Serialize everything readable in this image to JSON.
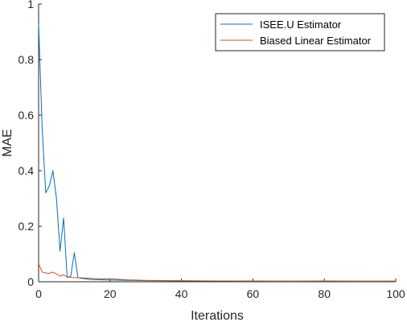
{
  "chart_data": {
    "type": "line",
    "title": "",
    "xlabel": "Iterations",
    "ylabel": "MAE",
    "xlim": [
      0,
      100
    ],
    "ylim": [
      0,
      1
    ],
    "xticks": [
      0,
      20,
      40,
      60,
      80,
      100
    ],
    "yticks": [
      0,
      0.2,
      0.4,
      0.6,
      0.8,
      1
    ],
    "xtick_labels": [
      "0",
      "20",
      "40",
      "60",
      "80",
      "100"
    ],
    "ytick_labels": [
      "0",
      "0.2",
      "0.4",
      "0.6",
      "0.8",
      "1"
    ],
    "grid": false,
    "legend_position": "top-right",
    "series": [
      {
        "name": "ISEE.U Estimator",
        "color": "#0072BD",
        "x": [
          0,
          1,
          2,
          3,
          4,
          5,
          6,
          7,
          8,
          9,
          10,
          11,
          12,
          15,
          20,
          30,
          40,
          50,
          60,
          70,
          80,
          90,
          100
        ],
        "y": [
          0.93,
          0.55,
          0.32,
          0.345,
          0.4,
          0.3,
          0.11,
          0.23,
          0.015,
          0.02,
          0.105,
          0.015,
          0.012,
          0.008,
          0.006,
          0.004,
          0.003,
          0.003,
          0.002,
          0.002,
          0.002,
          0.002,
          0.002
        ]
      },
      {
        "name": "Biased Linear Estimator",
        "color": "#D95319",
        "x": [
          0,
          1,
          2,
          3,
          4,
          5,
          6,
          7,
          8,
          9,
          10,
          12,
          15,
          18,
          20,
          25,
          30,
          40,
          50,
          60,
          70,
          80,
          90,
          100
        ],
        "y": [
          0.065,
          0.035,
          0.032,
          0.03,
          0.035,
          0.028,
          0.02,
          0.025,
          0.018,
          0.016,
          0.015,
          0.014,
          0.012,
          0.01,
          0.011,
          0.007,
          0.005,
          0.004,
          0.003,
          0.003,
          0.002,
          0.003,
          0.002,
          0.002
        ]
      }
    ]
  }
}
